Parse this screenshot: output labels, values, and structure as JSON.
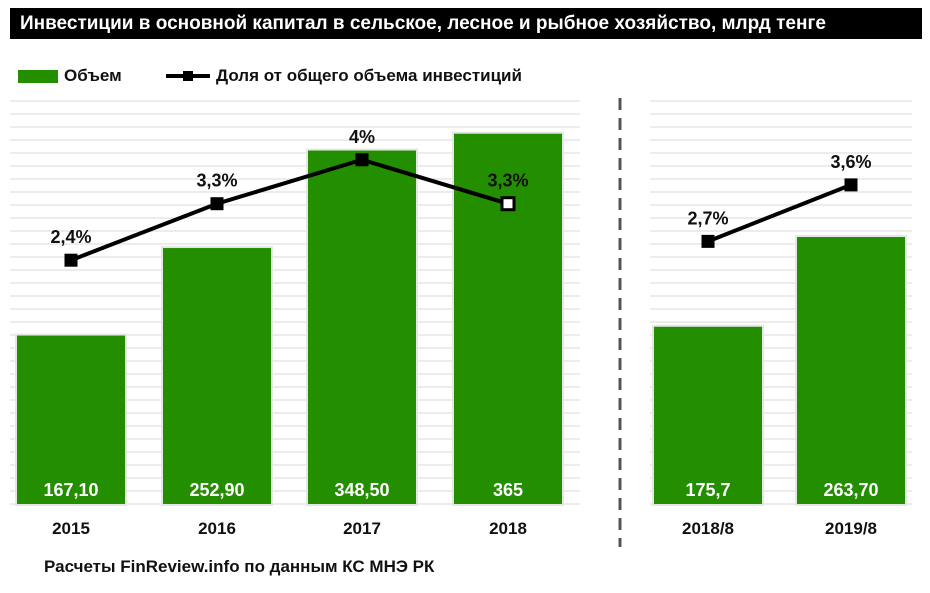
{
  "title": "Инвестиции в основной капитал в сельское, лесное и рыбное хозяйство, млрд тенге",
  "legend": {
    "bar_label": "Объем",
    "line_label": "Доля от общего объема инвестиций"
  },
  "source": "Расчеты FinReview.info по данным КС МНЭ РК",
  "colors": {
    "bar": "#238e00",
    "line": "#000000",
    "grid": "#d9d9d9",
    "divider": "#555555"
  },
  "chart_data": {
    "type": "bar",
    "groups": [
      {
        "categories": [
          "2015",
          "2016",
          "2017",
          "2018"
        ],
        "series": [
          {
            "name": "Объем",
            "type": "bar",
            "values": [
              167.1,
              252.9,
              348.5,
              365
            ],
            "labels": [
              "167,10",
              "252,90",
              "348,50",
              "365"
            ]
          },
          {
            "name": "Доля от общего объема инвестиций",
            "type": "line",
            "values": [
              2.4,
              3.3,
              4.0,
              3.3
            ],
            "labels": [
              "2,4%",
              "3,3%",
              "4%",
              "3,3%"
            ]
          }
        ]
      },
      {
        "categories": [
          "2018/8",
          "2019/8"
        ],
        "series": [
          {
            "name": "Объем",
            "type": "bar",
            "values": [
              175.7,
              263.7
            ],
            "labels": [
              "175,7",
              "263,70"
            ]
          },
          {
            "name": "Доля от общего объема инвестиций",
            "type": "line",
            "values": [
              2.7,
              3.6
            ],
            "labels": [
              "2,7%",
              "3,6%"
            ]
          }
        ]
      }
    ],
    "bar_ylim": [
      0,
      400
    ],
    "line_ylim": [
      -1.5,
      5
    ],
    "legend_position": "top-left",
    "grid": true
  }
}
